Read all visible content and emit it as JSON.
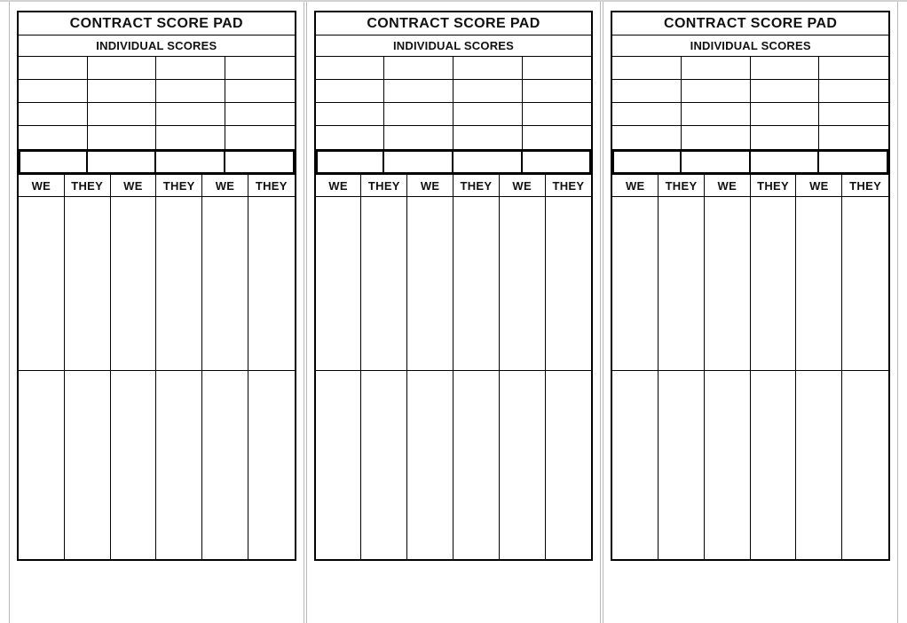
{
  "document": {
    "pads": [
      {
        "title": "CONTRACT SCORE PAD",
        "subtitle": "INDIVIDUAL SCORES",
        "columns": [
          "WE",
          "THEY",
          "WE",
          "THEY",
          "WE",
          "THEY"
        ]
      },
      {
        "title": "CONTRACT SCORE PAD",
        "subtitle": "INDIVIDUAL SCORES",
        "columns": [
          "WE",
          "THEY",
          "WE",
          "THEY",
          "WE",
          "THEY"
        ]
      },
      {
        "title": "CONTRACT SCORE PAD",
        "subtitle": "INDIVIDUAL SCORES",
        "columns": [
          "WE",
          "THEY",
          "WE",
          "THEY",
          "WE",
          "THEY"
        ]
      }
    ],
    "colors": {
      "line": "#000000",
      "page_edge": "#b8b8b8",
      "background": "#ffffff"
    }
  }
}
